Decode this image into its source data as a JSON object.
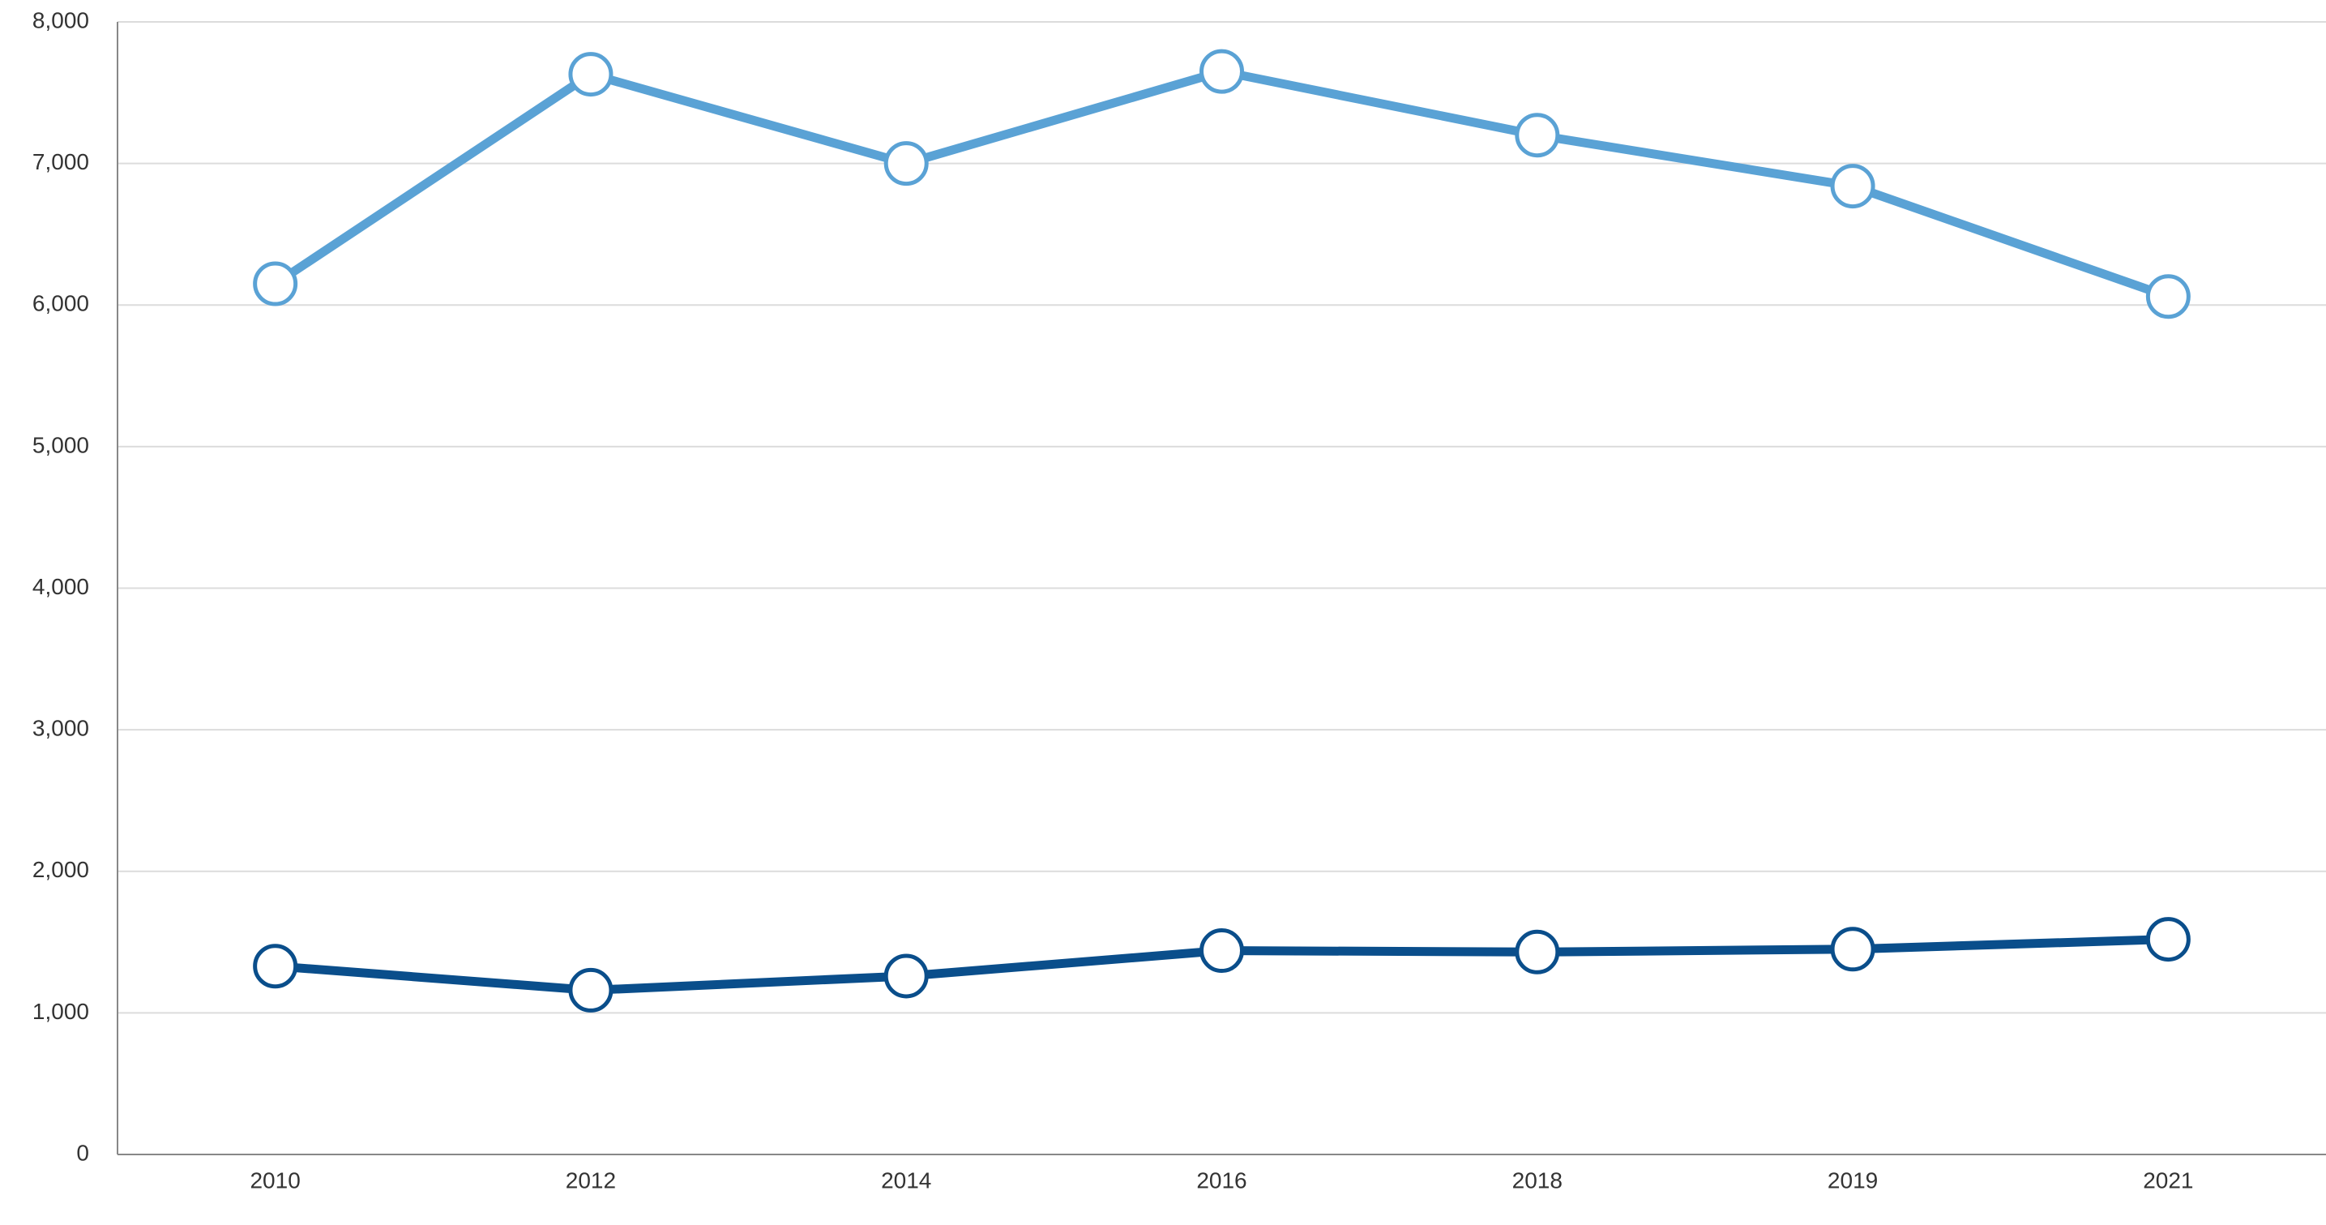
{
  "chart_data": {
    "type": "line",
    "categories": [
      "2010",
      "2012",
      "2014",
      "2016",
      "2018",
      "2019",
      "2021"
    ],
    "series": [
      {
        "color": "#5aa2d5",
        "values": [
          6150,
          7630,
          7000,
          7650,
          7200,
          6840,
          6060
        ]
      },
      {
        "color": "#0a4e8b",
        "values": [
          1330,
          1160,
          1260,
          1440,
          1430,
          1450,
          1520
        ]
      }
    ],
    "ylim": [
      0,
      8000
    ],
    "yticks": [
      0,
      {
        "value": 1000,
        "label": "1,000"
      },
      {
        "value": 2000,
        "label": "2,000"
      },
      {
        "value": 3000,
        "label": "3,000"
      },
      {
        "value": 4000,
        "label": "4,000"
      },
      {
        "value": 5000,
        "label": "5,000"
      },
      {
        "value": 6000,
        "label": "6,000"
      },
      {
        "value": 7000,
        "label": "7,000"
      },
      {
        "value": 8000,
        "label": "8,000"
      }
    ],
    "grid": true
  }
}
